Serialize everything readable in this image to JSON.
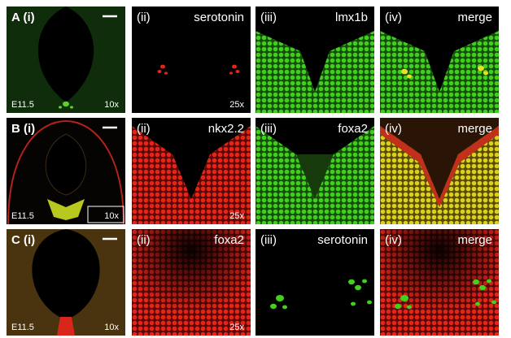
{
  "figure": {
    "rows": [
      {
        "panels": [
          {
            "label": "A (i)",
            "stage": "E11.5",
            "magnification": "10x"
          },
          {
            "label": "(ii)",
            "marker": "serotonin",
            "magnification": "25x"
          },
          {
            "label": "(iii)",
            "marker": "lmx1b"
          },
          {
            "label": "(iv)",
            "marker": "merge"
          }
        ]
      },
      {
        "panels": [
          {
            "label": "B (i)",
            "stage": "E11.5",
            "magnification": "10x"
          },
          {
            "label": "(ii)",
            "marker": "nkx2.2",
            "magnification": "25x"
          },
          {
            "label": "(iii)",
            "marker": "foxa2"
          },
          {
            "label": "(iv)",
            "marker": "merge"
          }
        ]
      },
      {
        "panels": [
          {
            "label": "C (i)",
            "stage": "E11.5",
            "magnification": "10x"
          },
          {
            "label": "(ii)",
            "marker": "foxa2",
            "magnification": "25x"
          },
          {
            "label": "(iii)",
            "marker": "serotonin"
          },
          {
            "label": "(iv)",
            "marker": "merge"
          }
        ]
      }
    ]
  }
}
